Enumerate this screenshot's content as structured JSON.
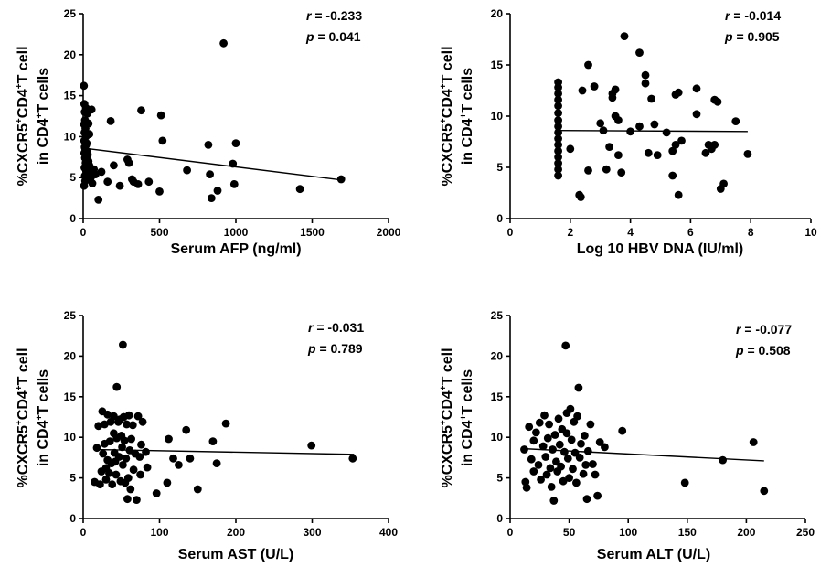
{
  "chart_data": [
    {
      "type": "scatter",
      "xlabel": "Serum AFP (ng/ml)",
      "ylabel_line1": "%CXCR5",
      "ylabel_sup1": "+",
      "ylabel_mid": "CD4",
      "ylabel_sup2": "+",
      "ylabel_end": "T cell",
      "ylabel_line2": "in CD4",
      "ylabel_sup3": "+",
      "ylabel_line2_end": "T cells",
      "xlim": [
        0,
        2000
      ],
      "ylim": [
        0,
        25
      ],
      "xticks": [
        0,
        500,
        1000,
        1500,
        2000
      ],
      "yticks": [
        0,
        5,
        10,
        15,
        20,
        25
      ],
      "stats": {
        "r_key": "r",
        "r_value": " = -0.233",
        "p_key": "p",
        "p_value": " = 0.041"
      },
      "fit": {
        "x": [
          0,
          1700
        ],
        "y": [
          8.6,
          4.7
        ]
      },
      "points": [
        [
          5,
          16.2
        ],
        [
          8,
          14
        ],
        [
          10,
          13
        ],
        [
          12,
          12
        ],
        [
          6,
          11.5
        ],
        [
          15,
          11
        ],
        [
          9,
          10.5
        ],
        [
          18,
          10
        ],
        [
          7,
          9.5
        ],
        [
          20,
          9
        ],
        [
          10,
          8.7
        ],
        [
          14,
          8.5
        ],
        [
          25,
          8.2
        ],
        [
          8,
          8
        ],
        [
          30,
          7.8
        ],
        [
          12,
          7.4
        ],
        [
          35,
          7
        ],
        [
          16,
          6.8
        ],
        [
          40,
          6.5
        ],
        [
          9,
          6.2
        ],
        [
          20,
          5.8
        ],
        [
          45,
          5.6
        ],
        [
          11,
          5.2
        ],
        [
          50,
          5
        ],
        [
          13,
          4.6
        ],
        [
          60,
          4.3
        ],
        [
          6,
          4
        ],
        [
          18,
          13.5
        ],
        [
          27,
          12.8
        ],
        [
          35,
          11.6
        ],
        [
          55,
          13.3
        ],
        [
          40,
          10.3
        ],
        [
          22,
          9.2
        ],
        [
          70,
          6
        ],
        [
          80,
          5.4
        ],
        [
          100,
          2.3
        ],
        [
          120,
          5.7
        ],
        [
          160,
          4.5
        ],
        [
          180,
          11.9
        ],
        [
          200,
          6.5
        ],
        [
          240,
          4
        ],
        [
          290,
          7.2
        ],
        [
          300,
          6.8
        ],
        [
          320,
          4.8
        ],
        [
          330,
          4.5
        ],
        [
          360,
          4.2
        ],
        [
          380,
          13.2
        ],
        [
          430,
          4.5
        ],
        [
          500,
          3.3
        ],
        [
          510,
          12.6
        ],
        [
          520,
          9.5
        ],
        [
          680,
          5.9
        ],
        [
          820,
          9.0
        ],
        [
          830,
          5.4
        ],
        [
          840,
          2.5
        ],
        [
          880,
          3.4
        ],
        [
          920,
          21.4
        ],
        [
          980,
          6.7
        ],
        [
          990,
          4.2
        ],
        [
          1000,
          9.2
        ],
        [
          1420,
          3.6
        ],
        [
          1690,
          4.8
        ]
      ]
    },
    {
      "type": "scatter",
      "xlabel": "Log 10 HBV DNA (IU/ml)",
      "ylabel_line1": "%CXCR5",
      "ylabel_sup1": "+",
      "ylabel_mid": "CD4",
      "ylabel_sup2": "+",
      "ylabel_end": "T cell",
      "ylabel_line2": "in CD4",
      "ylabel_sup3": "+",
      "ylabel_line2_end": "T cells",
      "xlim": [
        0,
        10
      ],
      "ylim": [
        0,
        20
      ],
      "xticks": [
        0,
        2,
        4,
        6,
        8,
        10
      ],
      "yticks": [
        0,
        5,
        10,
        15,
        20
      ],
      "stats": {
        "r_key": "r",
        "r_value": " = -0.014",
        "p_key": "p",
        "p_value": " = 0.905"
      },
      "fit": {
        "x": [
          1.6,
          7.9
        ],
        "y": [
          8.6,
          8.5
        ]
      },
      "points": [
        [
          1.6,
          13.3
        ],
        [
          1.6,
          12.8
        ],
        [
          1.6,
          12.2
        ],
        [
          1.6,
          11.6
        ],
        [
          1.6,
          11
        ],
        [
          1.6,
          10.3
        ],
        [
          1.6,
          9.6
        ],
        [
          1.6,
          9
        ],
        [
          1.6,
          8.4
        ],
        [
          1.6,
          7.8
        ],
        [
          1.6,
          7.2
        ],
        [
          1.6,
          6.6
        ],
        [
          1.6,
          6
        ],
        [
          1.6,
          5.4
        ],
        [
          1.6,
          4.8
        ],
        [
          1.6,
          4.2
        ],
        [
          2,
          6.8
        ],
        [
          2.3,
          2.3
        ],
        [
          2.35,
          2.1
        ],
        [
          2.4,
          12.5
        ],
        [
          2.6,
          4.7
        ],
        [
          2.6,
          15
        ],
        [
          2.8,
          12.9
        ],
        [
          3,
          9.3
        ],
        [
          3.1,
          8.6
        ],
        [
          3.2,
          4.8
        ],
        [
          3.3,
          7
        ],
        [
          3.4,
          12.2
        ],
        [
          3.4,
          11.8
        ],
        [
          3.5,
          12.6
        ],
        [
          3.5,
          10
        ],
        [
          3.6,
          9.6
        ],
        [
          3.6,
          6.2
        ],
        [
          3.7,
          4.5
        ],
        [
          3.8,
          17.8
        ],
        [
          4,
          8.5
        ],
        [
          4.3,
          9
        ],
        [
          4.3,
          16.2
        ],
        [
          4.5,
          13.2
        ],
        [
          4.5,
          14
        ],
        [
          4.6,
          6.4
        ],
        [
          4.7,
          11.7
        ],
        [
          4.8,
          9.2
        ],
        [
          4.9,
          6.2
        ],
        [
          5.2,
          8.4
        ],
        [
          5.4,
          4.2
        ],
        [
          5.4,
          6.6
        ],
        [
          5.5,
          7.2
        ],
        [
          5.5,
          12.1
        ],
        [
          5.6,
          2.3
        ],
        [
          5.6,
          12.3
        ],
        [
          5.7,
          7.6
        ],
        [
          6.2,
          10.2
        ],
        [
          6.2,
          12.7
        ],
        [
          6.5,
          6.4
        ],
        [
          6.6,
          7.2
        ],
        [
          6.7,
          6.8
        ],
        [
          6.8,
          11.6
        ],
        [
          6.8,
          7.2
        ],
        [
          6.9,
          11.4
        ],
        [
          7,
          2.9
        ],
        [
          7.1,
          3.4
        ],
        [
          7.5,
          9.5
        ],
        [
          7.9,
          6.3
        ]
      ]
    },
    {
      "type": "scatter",
      "xlabel": "Serum AST (U/L)",
      "ylabel_line1": "%CXCR5",
      "ylabel_sup1": "+",
      "ylabel_mid": "CD4",
      "ylabel_sup2": "+",
      "ylabel_end": "T cell",
      "ylabel_line2": "in CD4",
      "ylabel_sup3": "+",
      "ylabel_line2_end": "T cells",
      "xlim": [
        0,
        400
      ],
      "ylim": [
        0,
        25
      ],
      "xticks": [
        0,
        100,
        200,
        300,
        400
      ],
      "yticks": [
        0,
        5,
        10,
        15,
        20,
        25
      ],
      "stats": {
        "r_key": "r",
        "r_value": " = -0.031",
        "p_key": "p",
        "p_value": " = 0.789"
      },
      "fit": {
        "x": [
          15,
          355
        ],
        "y": [
          8.5,
          7.9
        ]
      },
      "points": [
        [
          15,
          4.5
        ],
        [
          18,
          8.7
        ],
        [
          20,
          11.4
        ],
        [
          22,
          4.2
        ],
        [
          24,
          5.8
        ],
        [
          25,
          13.2
        ],
        [
          26,
          8
        ],
        [
          28,
          9.2
        ],
        [
          28,
          11.6
        ],
        [
          30,
          6.2
        ],
        [
          30,
          4.8
        ],
        [
          32,
          12.8
        ],
        [
          32,
          7.2
        ],
        [
          34,
          5.6
        ],
        [
          35,
          9.5
        ],
        [
          36,
          11.9
        ],
        [
          37,
          6.8
        ],
        [
          38,
          4.2
        ],
        [
          40,
          10.5
        ],
        [
          40,
          12.6
        ],
        [
          41,
          8.1
        ],
        [
          42,
          7
        ],
        [
          43,
          5.4
        ],
        [
          44,
          9.9
        ],
        [
          44,
          16.2
        ],
        [
          46,
          11.9
        ],
        [
          47,
          7.6
        ],
        [
          48,
          12.2
        ],
        [
          49,
          4.6
        ],
        [
          50,
          10.2
        ],
        [
          51,
          8.8
        ],
        [
          52,
          21.4
        ],
        [
          52,
          6.6
        ],
        [
          53,
          12.5
        ],
        [
          54,
          9.6
        ],
        [
          55,
          4.4
        ],
        [
          56,
          7.4
        ],
        [
          57,
          11.6
        ],
        [
          58,
          2.4
        ],
        [
          59,
          5
        ],
        [
          60,
          12.7
        ],
        [
          61,
          8.4
        ],
        [
          62,
          3.6
        ],
        [
          63,
          9.8
        ],
        [
          65,
          11.5
        ],
        [
          66,
          6
        ],
        [
          68,
          8
        ],
        [
          70,
          2.3
        ],
        [
          72,
          12.6
        ],
        [
          74,
          7.6
        ],
        [
          75,
          5.4
        ],
        [
          76,
          9.1
        ],
        [
          78,
          11.9
        ],
        [
          82,
          8.2
        ],
        [
          84,
          6.3
        ],
        [
          96,
          3.1
        ],
        [
          110,
          4.4
        ],
        [
          112,
          9.8
        ],
        [
          118,
          7.4
        ],
        [
          125,
          6.6
        ],
        [
          135,
          10.9
        ],
        [
          140,
          7.4
        ],
        [
          150,
          3.6
        ],
        [
          170,
          9.5
        ],
        [
          175,
          6.8
        ],
        [
          187,
          11.7
        ],
        [
          299,
          9
        ],
        [
          353,
          7.4
        ]
      ]
    },
    {
      "type": "scatter",
      "xlabel": "Serum ALT (U/L)",
      "ylabel_line1": "%CXCR5",
      "ylabel_sup1": "+",
      "ylabel_mid": "CD4",
      "ylabel_sup2": "+",
      "ylabel_end": "T cell",
      "ylabel_line2": "in CD4",
      "ylabel_sup3": "+",
      "ylabel_line2_end": "T cells",
      "xlim": [
        0,
        250
      ],
      "ylim": [
        0,
        25
      ],
      "xticks": [
        0,
        50,
        100,
        150,
        200,
        250
      ],
      "yticks": [
        0,
        5,
        10,
        15,
        20,
        25
      ],
      "stats": {
        "r_key": "r",
        "r_value": " = -0.077",
        "p_key": "p",
        "p_value": " = 0.508"
      },
      "fit": {
        "x": [
          12,
          215
        ],
        "y": [
          8.6,
          7.1
        ]
      },
      "points": [
        [
          12,
          8.5
        ],
        [
          13,
          4.5
        ],
        [
          14,
          3.8
        ],
        [
          16,
          11.3
        ],
        [
          18,
          7.3
        ],
        [
          20,
          9.6
        ],
        [
          20,
          5.8
        ],
        [
          22,
          10.6
        ],
        [
          24,
          6.6
        ],
        [
          25,
          11.8
        ],
        [
          26,
          4.8
        ],
        [
          28,
          8.9
        ],
        [
          29,
          12.7
        ],
        [
          30,
          7.6
        ],
        [
          31,
          5.4
        ],
        [
          32,
          9.9
        ],
        [
          33,
          11.6
        ],
        [
          34,
          6.2
        ],
        [
          35,
          3.9
        ],
        [
          36,
          8.5
        ],
        [
          37,
          2.2
        ],
        [
          38,
          10.3
        ],
        [
          39,
          7
        ],
        [
          40,
          5.8
        ],
        [
          41,
          12.3
        ],
        [
          42,
          9.1
        ],
        [
          43,
          6.4
        ],
        [
          44,
          11
        ],
        [
          45,
          4.6
        ],
        [
          46,
          8.2
        ],
        [
          47,
          21.3
        ],
        [
          48,
          13
        ],
        [
          48,
          10.5
        ],
        [
          49,
          7.4
        ],
        [
          50,
          5
        ],
        [
          51,
          13.5
        ],
        [
          52,
          9.7
        ],
        [
          53,
          6.1
        ],
        [
          54,
          11.9
        ],
        [
          55,
          8.1
        ],
        [
          56,
          4.4
        ],
        [
          57,
          12.6
        ],
        [
          58,
          16.1
        ],
        [
          59,
          7.5
        ],
        [
          60,
          9.2
        ],
        [
          62,
          5.5
        ],
        [
          63,
          10.2
        ],
        [
          64,
          6.6
        ],
        [
          65,
          2.4
        ],
        [
          66,
          8.3
        ],
        [
          68,
          11.6
        ],
        [
          70,
          6.7
        ],
        [
          72,
          5.4
        ],
        [
          74,
          2.8
        ],
        [
          76,
          9.4
        ],
        [
          80,
          8.8
        ],
        [
          95,
          10.8
        ],
        [
          148,
          4.4
        ],
        [
          180,
          7.2
        ],
        [
          206,
          9.4
        ],
        [
          215,
          3.4
        ]
      ]
    }
  ]
}
